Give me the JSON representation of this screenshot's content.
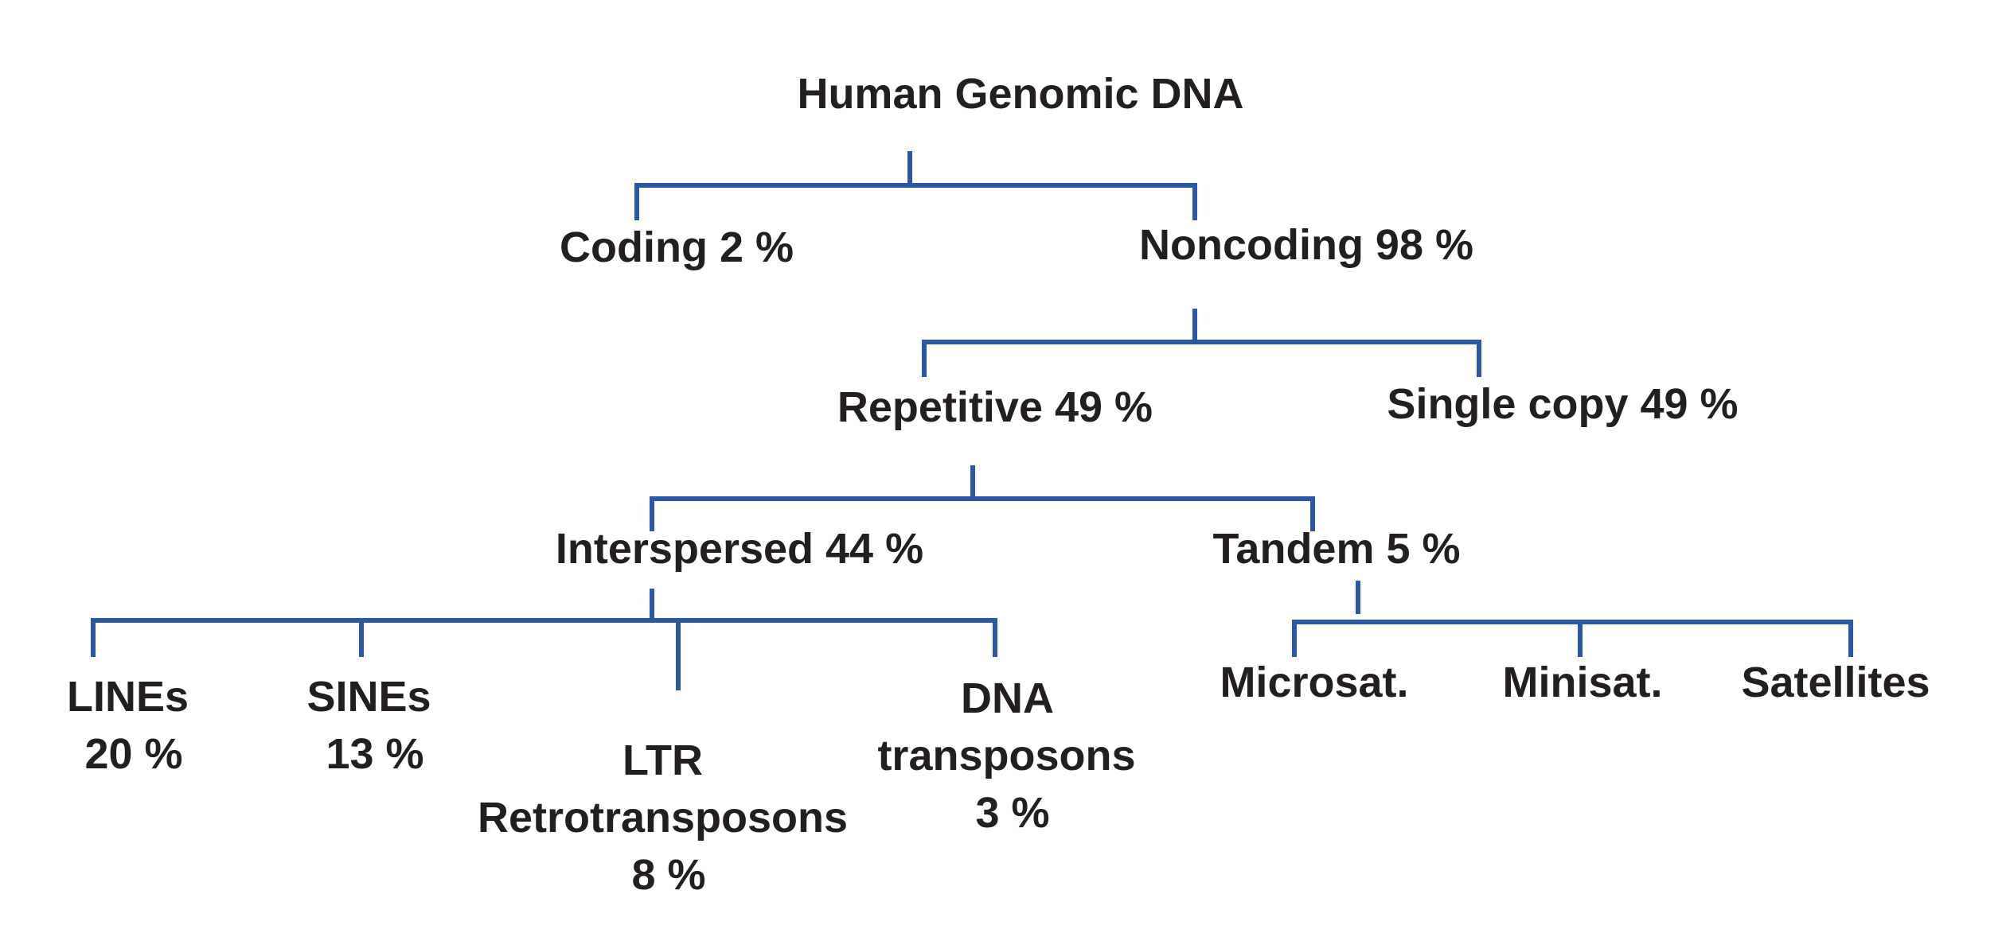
{
  "diagram": {
    "type": "tree",
    "line_color": "#2b57a6",
    "text_color": "#231f20",
    "nodes": {
      "root": "Human Genomic DNA",
      "coding": "Coding 2 %",
      "noncoding": "Noncoding 98 %",
      "repetitive": "Repetitive 49 %",
      "single_copy": "Single copy 49 %",
      "interspersed": "Interspersed 44 %",
      "tandem": "Tandem 5 %",
      "lines": [
        "LINEs",
        "20 %"
      ],
      "sines": [
        "SINEs",
        "13 %"
      ],
      "ltr": [
        "LTR",
        "Retrotransposons",
        "8 %"
      ],
      "dna_transposons": [
        "DNA",
        "transposons",
        "3 %"
      ],
      "microsat": "Microsat.",
      "minisat": "Minisat.",
      "satellites": "Satellites"
    },
    "edges": [
      [
        "root",
        "coding"
      ],
      [
        "root",
        "noncoding"
      ],
      [
        "noncoding",
        "repetitive"
      ],
      [
        "noncoding",
        "single_copy"
      ],
      [
        "repetitive",
        "interspersed"
      ],
      [
        "repetitive",
        "tandem"
      ],
      [
        "interspersed",
        "lines"
      ],
      [
        "interspersed",
        "sines"
      ],
      [
        "interspersed",
        "ltr"
      ],
      [
        "interspersed",
        "dna_transposons"
      ],
      [
        "tandem",
        "microsat"
      ],
      [
        "tandem",
        "minisat"
      ],
      [
        "tandem",
        "satellites"
      ]
    ]
  }
}
